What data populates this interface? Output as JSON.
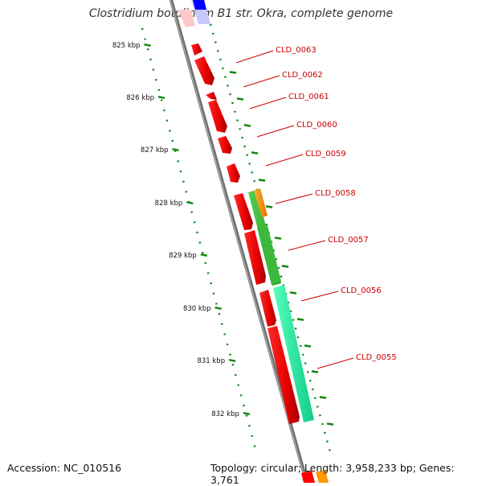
{
  "title": "Clostridium botulinum B1 str. Okra, complete genome",
  "footer": {
    "accession": "Accession: NC_010516",
    "topology": "Topology: circular; Length: 3,958,233 bp; Genes: 3,761"
  },
  "ruler_labels": [
    "825 kbp",
    "826 kbp",
    "827 kbp",
    "828 kbp",
    "829 kbp",
    "830 kbp",
    "831 kbp",
    "832 kbp"
  ],
  "gene_labels": [
    "CLD_0063",
    "CLD_0062",
    "CLD_0061",
    "CLD_0060",
    "CLD_0059",
    "CLD_0058",
    "CLD_0057",
    "CLD_0056",
    "CLD_0055"
  ],
  "colors": {
    "backbone": "#808080",
    "gene_red": "#ff0000",
    "gene_green": "#33bb33",
    "gene_orange": "#ff9900",
    "gene_teal": "#22ee99",
    "gene_blue": "#0000ff",
    "label_red": "#cc0000",
    "tick_green": "#118811"
  }
}
